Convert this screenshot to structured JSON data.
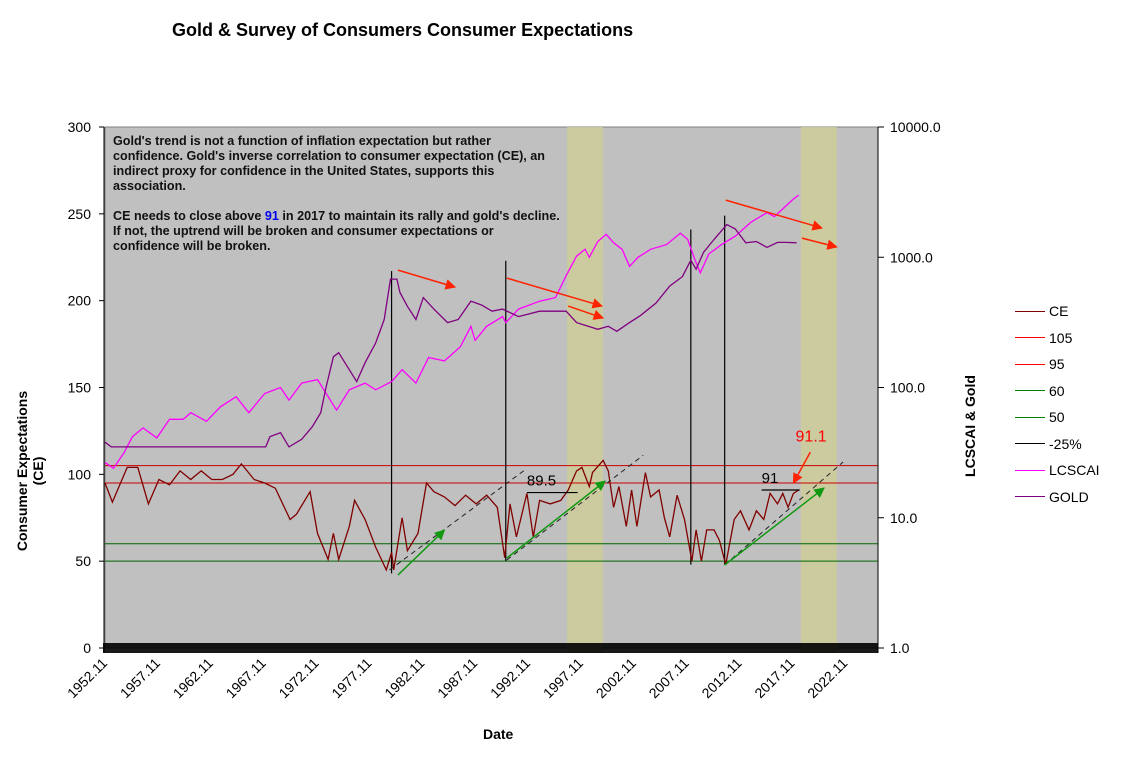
{
  "chart_data": {
    "type": "line",
    "title": "Gold & Survey of Consumers Consumer Expectations",
    "xlabel": "Date",
    "ylabel": "Consumer Expectations (CE)",
    "y2label": "LCSCAI & Gold",
    "xlim": [
      1952.9,
      2026.0
    ],
    "ylim": [
      0,
      300
    ],
    "y2lim": [
      1,
      10000
    ],
    "y2scale": "log",
    "grid": false,
    "legend_placement": "right",
    "x_tick_labels": [
      "1952.11",
      "1957.11",
      "1962.11",
      "1967.11",
      "1972.11",
      "1977.11",
      "1982.11",
      "1987.11",
      "1992.11",
      "1997.11",
      "2002.11",
      "2007.11",
      "2012.11",
      "2017.11",
      "2022.11"
    ],
    "y_tick_labels": [
      "0",
      "50",
      "100",
      "150",
      "200",
      "250",
      "300"
    ],
    "y2_tick_labels": [
      "1.0",
      "10.0",
      "100.0",
      "1000.0",
      "10000.0"
    ],
    "colors": {
      "background": "#C0C0C0",
      "highlight_band": "#CCCC99",
      "CE": "#800000",
      "105": "#CC0000",
      "95": "#CC0000",
      "60": "#006600",
      "50": "#006600",
      "-25%": "#000000",
      "LCSCAI": "#FF00FF",
      "GOLD": "#800080"
    },
    "legend": [
      {
        "name": "CE",
        "color": "#800000"
      },
      {
        "name": "105",
        "color": "#FF0000"
      },
      {
        "name": "95",
        "color": "#FF0000"
      },
      {
        "name": "60",
        "color": "#008000"
      },
      {
        "name": "50",
        "color": "#008000"
      },
      {
        "name": "-25%",
        "color": "#000000"
      },
      {
        "name": "LCSCAI",
        "color": "#FF00FF"
      },
      {
        "name": "GOLD",
        "color": "#800080"
      }
    ],
    "reference_levels": [
      105,
      95,
      60,
      50
    ],
    "highlight_bands": [
      [
        1996.6,
        2000.0
      ],
      [
        2018.7,
        2022.1
      ]
    ],
    "series": [
      {
        "name": "CE",
        "axis": "left",
        "points": [
          [
            1952.9,
            95
          ],
          [
            1953.6,
            84
          ],
          [
            1955,
            104
          ],
          [
            1956,
            104
          ],
          [
            1957,
            83
          ],
          [
            1958,
            97
          ],
          [
            1959,
            94
          ],
          [
            1960,
            102
          ],
          [
            1961,
            97
          ],
          [
            1962,
            102
          ],
          [
            1963,
            97
          ],
          [
            1964,
            97
          ],
          [
            1965,
            100
          ],
          [
            1965.8,
            106
          ],
          [
            1967,
            97
          ],
          [
            1968,
            95
          ],
          [
            1969,
            92
          ],
          [
            1970.4,
            74
          ],
          [
            1971,
            77
          ],
          [
            1972.3,
            90
          ],
          [
            1973,
            66
          ],
          [
            1974,
            51
          ],
          [
            1974.5,
            66
          ],
          [
            1975,
            51
          ],
          [
            1976,
            70
          ],
          [
            1976.5,
            85
          ],
          [
            1977.5,
            74
          ],
          [
            1978.5,
            58
          ],
          [
            1979.5,
            45
          ],
          [
            1980,
            55
          ],
          [
            1980.2,
            45
          ],
          [
            1981,
            75
          ],
          [
            1981.5,
            56
          ],
          [
            1982.5,
            66
          ],
          [
            1983.3,
            95
          ],
          [
            1984,
            90
          ],
          [
            1985,
            87
          ],
          [
            1986,
            82
          ],
          [
            1987,
            88
          ],
          [
            1988,
            83
          ],
          [
            1989,
            88
          ],
          [
            1990,
            81
          ],
          [
            1990.7,
            52
          ],
          [
            1991.2,
            83
          ],
          [
            1991.8,
            64
          ],
          [
            1992.8,
            89
          ],
          [
            1993.4,
            64
          ],
          [
            1994,
            85
          ],
          [
            1995,
            83
          ],
          [
            1996,
            85
          ],
          [
            1996.7,
            91
          ],
          [
            1997.5,
            102
          ],
          [
            1998,
            104
          ],
          [
            1998.7,
            93
          ],
          [
            1999,
            101
          ],
          [
            2000,
            108
          ],
          [
            2000.5,
            102
          ],
          [
            2001,
            81
          ],
          [
            2001.5,
            93
          ],
          [
            2002.2,
            70
          ],
          [
            2002.7,
            91
          ],
          [
            2003.2,
            70
          ],
          [
            2004,
            101
          ],
          [
            2004.5,
            87
          ],
          [
            2005.3,
            91
          ],
          [
            2005.8,
            75
          ],
          [
            2006.3,
            64
          ],
          [
            2007,
            88
          ],
          [
            2007.7,
            74
          ],
          [
            2008.4,
            50
          ],
          [
            2008.8,
            68
          ],
          [
            2009.3,
            50
          ],
          [
            2009.8,
            68
          ],
          [
            2010.5,
            68
          ],
          [
            2011,
            62
          ],
          [
            2011.6,
            48
          ],
          [
            2012.4,
            74
          ],
          [
            2013,
            79
          ],
          [
            2013.8,
            68
          ],
          [
            2014.5,
            79
          ],
          [
            2015.2,
            74
          ],
          [
            2015.8,
            89
          ],
          [
            2016.5,
            83
          ],
          [
            2017,
            89
          ],
          [
            2017.5,
            81
          ],
          [
            2018,
            89
          ],
          [
            2018.5,
            91
          ]
        ]
      },
      {
        "name": "LCSCAI",
        "axis": "right",
        "points": [
          [
            1952.9,
            26.5
          ],
          [
            1953.7,
            24
          ],
          [
            1954.7,
            31.5
          ],
          [
            1955.5,
            42
          ],
          [
            1956.5,
            49
          ],
          [
            1957.8,
            41
          ],
          [
            1959,
            57
          ],
          [
            1960.3,
            57
          ],
          [
            1961,
            64
          ],
          [
            1962.5,
            55
          ],
          [
            1963.8,
            71
          ],
          [
            1965.3,
            85
          ],
          [
            1966.5,
            64
          ],
          [
            1968,
            90
          ],
          [
            1969.5,
            100
          ],
          [
            1970.3,
            80
          ],
          [
            1971.5,
            108
          ],
          [
            1973,
            115
          ],
          [
            1974.8,
            67
          ],
          [
            1976,
            96
          ],
          [
            1977.5,
            108
          ],
          [
            1978.5,
            96
          ],
          [
            1980,
            111
          ],
          [
            1981,
            137
          ],
          [
            1982.3,
            108
          ],
          [
            1983.5,
            170
          ],
          [
            1985,
            160
          ],
          [
            1986.5,
            205
          ],
          [
            1987.5,
            295
          ],
          [
            1987.9,
            230
          ],
          [
            1989,
            295
          ],
          [
            1990.5,
            350
          ],
          [
            1990.8,
            315
          ],
          [
            1992,
            400
          ],
          [
            1994,
            460
          ],
          [
            1995.5,
            490
          ],
          [
            1996.5,
            720
          ],
          [
            1997.5,
            1020
          ],
          [
            1998.3,
            1150
          ],
          [
            1998.7,
            1000
          ],
          [
            1999.5,
            1320
          ],
          [
            2000.3,
            1500
          ],
          [
            2001,
            1290
          ],
          [
            2001.8,
            1150
          ],
          [
            2002.5,
            850
          ],
          [
            2003.3,
            1000
          ],
          [
            2004.5,
            1150
          ],
          [
            2006,
            1250
          ],
          [
            2007.3,
            1530
          ],
          [
            2008,
            1370
          ],
          [
            2008.7,
            950
          ],
          [
            2009.2,
            760
          ],
          [
            2010,
            1060
          ],
          [
            2011.2,
            1250
          ],
          [
            2012.5,
            1450
          ],
          [
            2014,
            1860
          ],
          [
            2015.5,
            2200
          ],
          [
            2016.2,
            2050
          ],
          [
            2017,
            2350
          ],
          [
            2018,
            2800
          ],
          [
            2018.5,
            3000
          ]
        ]
      },
      {
        "name": "GOLD",
        "axis": "right",
        "points": [
          [
            1952.9,
            38
          ],
          [
            1953.5,
            35
          ],
          [
            1968.1,
            35
          ],
          [
            1968.5,
            42
          ],
          [
            1969.5,
            45
          ],
          [
            1970.3,
            35
          ],
          [
            1971.5,
            40
          ],
          [
            1972.5,
            50
          ],
          [
            1973.3,
            64
          ],
          [
            1973.8,
            100
          ],
          [
            1974.5,
            172
          ],
          [
            1975,
            185
          ],
          [
            1976,
            137
          ],
          [
            1976.7,
            111
          ],
          [
            1977.5,
            155
          ],
          [
            1978.5,
            220
          ],
          [
            1979.3,
            333
          ],
          [
            1979.9,
            680
          ],
          [
            1980.5,
            680
          ],
          [
            1980.8,
            535
          ],
          [
            1981.5,
            420
          ],
          [
            1982.3,
            333
          ],
          [
            1983,
            490
          ],
          [
            1984,
            400
          ],
          [
            1985.3,
            315
          ],
          [
            1986.3,
            333
          ],
          [
            1987.5,
            460
          ],
          [
            1988.5,
            430
          ],
          [
            1989.5,
            385
          ],
          [
            1990.5,
            400
          ],
          [
            1992,
            350
          ],
          [
            1994,
            385
          ],
          [
            1996.5,
            385
          ],
          [
            1997.5,
            315
          ],
          [
            1999.5,
            280
          ],
          [
            2000.5,
            295
          ],
          [
            2001.3,
            270
          ],
          [
            2002.5,
            315
          ],
          [
            2003.5,
            355
          ],
          [
            2005,
            445
          ],
          [
            2006.3,
            600
          ],
          [
            2007.5,
            710
          ],
          [
            2008.3,
            950
          ],
          [
            2008.8,
            810
          ],
          [
            2009.5,
            1090
          ],
          [
            2010.5,
            1370
          ],
          [
            2011.7,
            1780
          ],
          [
            2012.5,
            1650
          ],
          [
            2013.5,
            1290
          ],
          [
            2014.5,
            1320
          ],
          [
            2015.5,
            1190
          ],
          [
            2016.5,
            1300
          ],
          [
            2017.3,
            1300
          ],
          [
            2018.3,
            1290
          ]
        ]
      }
    ],
    "vertical_markers": [
      [
        1980.0,
        43,
        217
      ],
      [
        1990.8,
        50,
        223
      ],
      [
        2008.3,
        48,
        241
      ],
      [
        2011.5,
        48,
        249
      ]
    ],
    "red_arrows": [
      [
        1980.6,
        217.6,
        1986.0,
        207.8
      ],
      [
        1990.9,
        213,
        1999.9,
        196.9
      ],
      [
        1996.7,
        196.9,
        2000.0,
        190
      ],
      [
        2011.6,
        257.9,
        2020.7,
        241.8
      ],
      [
        2018.8,
        236,
        2022.1,
        230.9
      ],
      [
        2019.6,
        112.8,
        2018.0,
        95
      ]
    ],
    "green_arrows": [
      [
        1980.6,
        42,
        1985.0,
        67.9
      ],
      [
        1990.9,
        51.8,
        2000.2,
        96.1
      ],
      [
        2011.5,
        47.8,
        2020.9,
        92.1
      ]
    ],
    "dashed_trendlines": [
      [
        1979.8,
        44.9,
        1992.6,
        102.5
      ],
      [
        1990.9,
        50.7,
        2003.8,
        111
      ],
      [
        2011.5,
        47.8,
        2022.7,
        107.1
      ]
    ],
    "level_marks": [
      {
        "label": "89.5",
        "value": 89.5,
        "x_from": 1992.8,
        "x_to": 1997.6,
        "color": "#000000"
      },
      {
        "label": "91",
        "value": 91,
        "x_from": 2015.0,
        "x_to": 2018.6,
        "color": "#000000"
      }
    ],
    "callout": {
      "label": "91.1",
      "color": "#FF0000"
    }
  },
  "note": {
    "paragraph1": "Gold's trend is not a function of inflation expectation  but rather confidence.  Gold's inverse correlation to consumer expectation  (CE), an indirect proxy for confidence in the United States, supports this association.",
    "paragraph2_before": "CE needs to close above ",
    "paragraph2_highlight": "91",
    "paragraph2_after": " in 2017 to maintain its rally and gold's decline.  If not, the uptrend will be broken and consumer expectations or confidence will be broken."
  }
}
